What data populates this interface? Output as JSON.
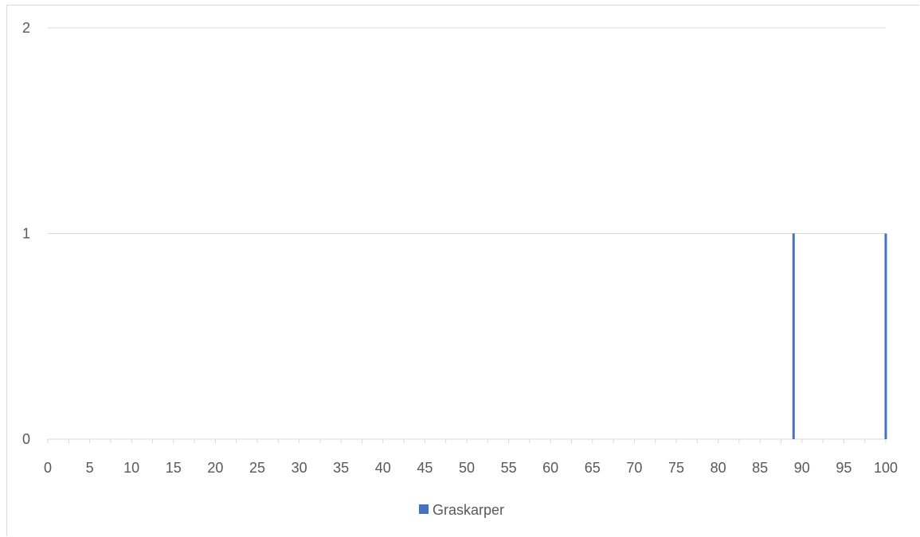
{
  "chart_data": {
    "type": "bar",
    "title": "",
    "xlabel": "",
    "ylabel": "",
    "x_ticks": [
      0,
      5,
      10,
      15,
      20,
      25,
      30,
      35,
      40,
      45,
      50,
      55,
      60,
      65,
      70,
      75,
      80,
      85,
      90,
      95,
      100
    ],
    "y_ticks": [
      0,
      1,
      2
    ],
    "xlim": [
      0,
      100
    ],
    "ylim": [
      0,
      2
    ],
    "grid": "horizontal",
    "legend_position": "bottom-center",
    "series": [
      {
        "name": "Graskarper",
        "color": "#4472c4",
        "points": [
          {
            "x": 89,
            "y": 1
          },
          {
            "x": 100,
            "y": 1
          }
        ]
      }
    ]
  }
}
